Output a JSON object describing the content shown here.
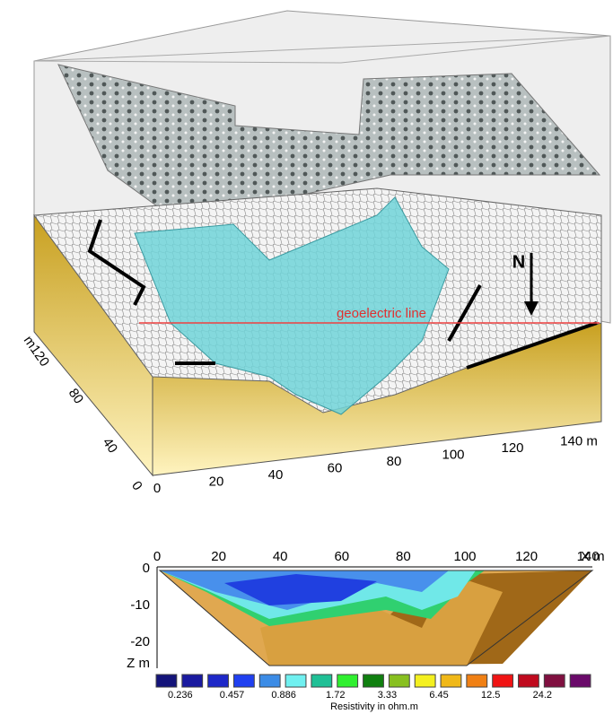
{
  "block": {
    "x_labels": [
      "0",
      "20",
      "40",
      "60",
      "80",
      "100",
      "120",
      "140 m"
    ],
    "y_labels": [
      "0",
      "40",
      "80",
      "m120"
    ],
    "north": "N",
    "line_label": "geoelectric line"
  },
  "section": {
    "x_labels": [
      "0",
      "20",
      "40",
      "60",
      "80",
      "100",
      "120",
      "140"
    ],
    "x_unit": "X m",
    "z_labels": [
      "0",
      "-10",
      "-20"
    ],
    "z_unit": "Z m"
  },
  "legend": {
    "colors": [
      "#14147a",
      "#1a1aa0",
      "#1e28c8",
      "#2040f0",
      "#3c8ce6",
      "#70f0f0",
      "#20c096",
      "#30f030",
      "#108010",
      "#88c020",
      "#f4f020",
      "#f0b818",
      "#f08014",
      "#f01414",
      "#c00a1e",
      "#801040",
      "#6a0a6a"
    ],
    "labels": [
      "0.236",
      "0.457",
      "0.886",
      "1.72",
      "3.33",
      "6.45",
      "12.5",
      "24.2"
    ],
    "title": "Resistivity in ohm.m"
  }
}
